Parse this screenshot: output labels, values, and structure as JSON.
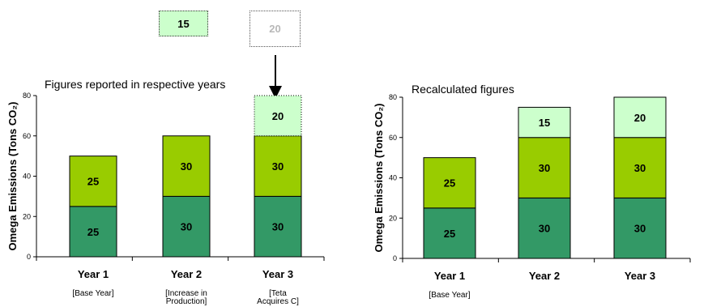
{
  "annotation_boxes": {
    "moved_segment": {
      "label": "15",
      "color": "#ccffcc"
    },
    "pending_segment": {
      "label": "20",
      "color": "#ffffff"
    }
  },
  "colors": {
    "base": "#339966",
    "middle": "#99cc00",
    "top": "#ccffcc",
    "axis": "#000000"
  },
  "chart_data": [
    {
      "type": "bar",
      "stacked": true,
      "title": "Figures reported in respective years",
      "ylabel": "Omega Emissions (Tons CO₂)",
      "ylim": [
        0,
        80
      ],
      "yticks": [
        0,
        20,
        40,
        60,
        80
      ],
      "categories": [
        "Year 1",
        "Year 2",
        "Year 3"
      ],
      "sublabels": [
        "[Base Year]",
        "[Increase in Production]",
        "[Teta Acquires C]"
      ],
      "series": [
        {
          "values": [
            25,
            30,
            30
          ],
          "color": "#339966"
        },
        {
          "values": [
            25,
            30,
            30
          ],
          "color": "#99cc00"
        },
        {
          "values": [
            0,
            0,
            20
          ],
          "color": "#ccffcc",
          "dotted": true
        }
      ]
    },
    {
      "type": "bar",
      "stacked": true,
      "title": "Recalculated figures",
      "ylabel": "Omega Emissions (Tons CO₂)",
      "ylim": [
        0,
        80
      ],
      "yticks": [
        0,
        20,
        40,
        60,
        80
      ],
      "categories": [
        "Year 1",
        "Year 2",
        "Year 3"
      ],
      "sublabels": [
        "[Base Year]",
        "",
        ""
      ],
      "series": [
        {
          "values": [
            25,
            30,
            30
          ],
          "color": "#339966"
        },
        {
          "values": [
            25,
            30,
            30
          ],
          "color": "#99cc00"
        },
        {
          "values": [
            0,
            15,
            20
          ],
          "color": "#ccffcc"
        }
      ]
    }
  ]
}
